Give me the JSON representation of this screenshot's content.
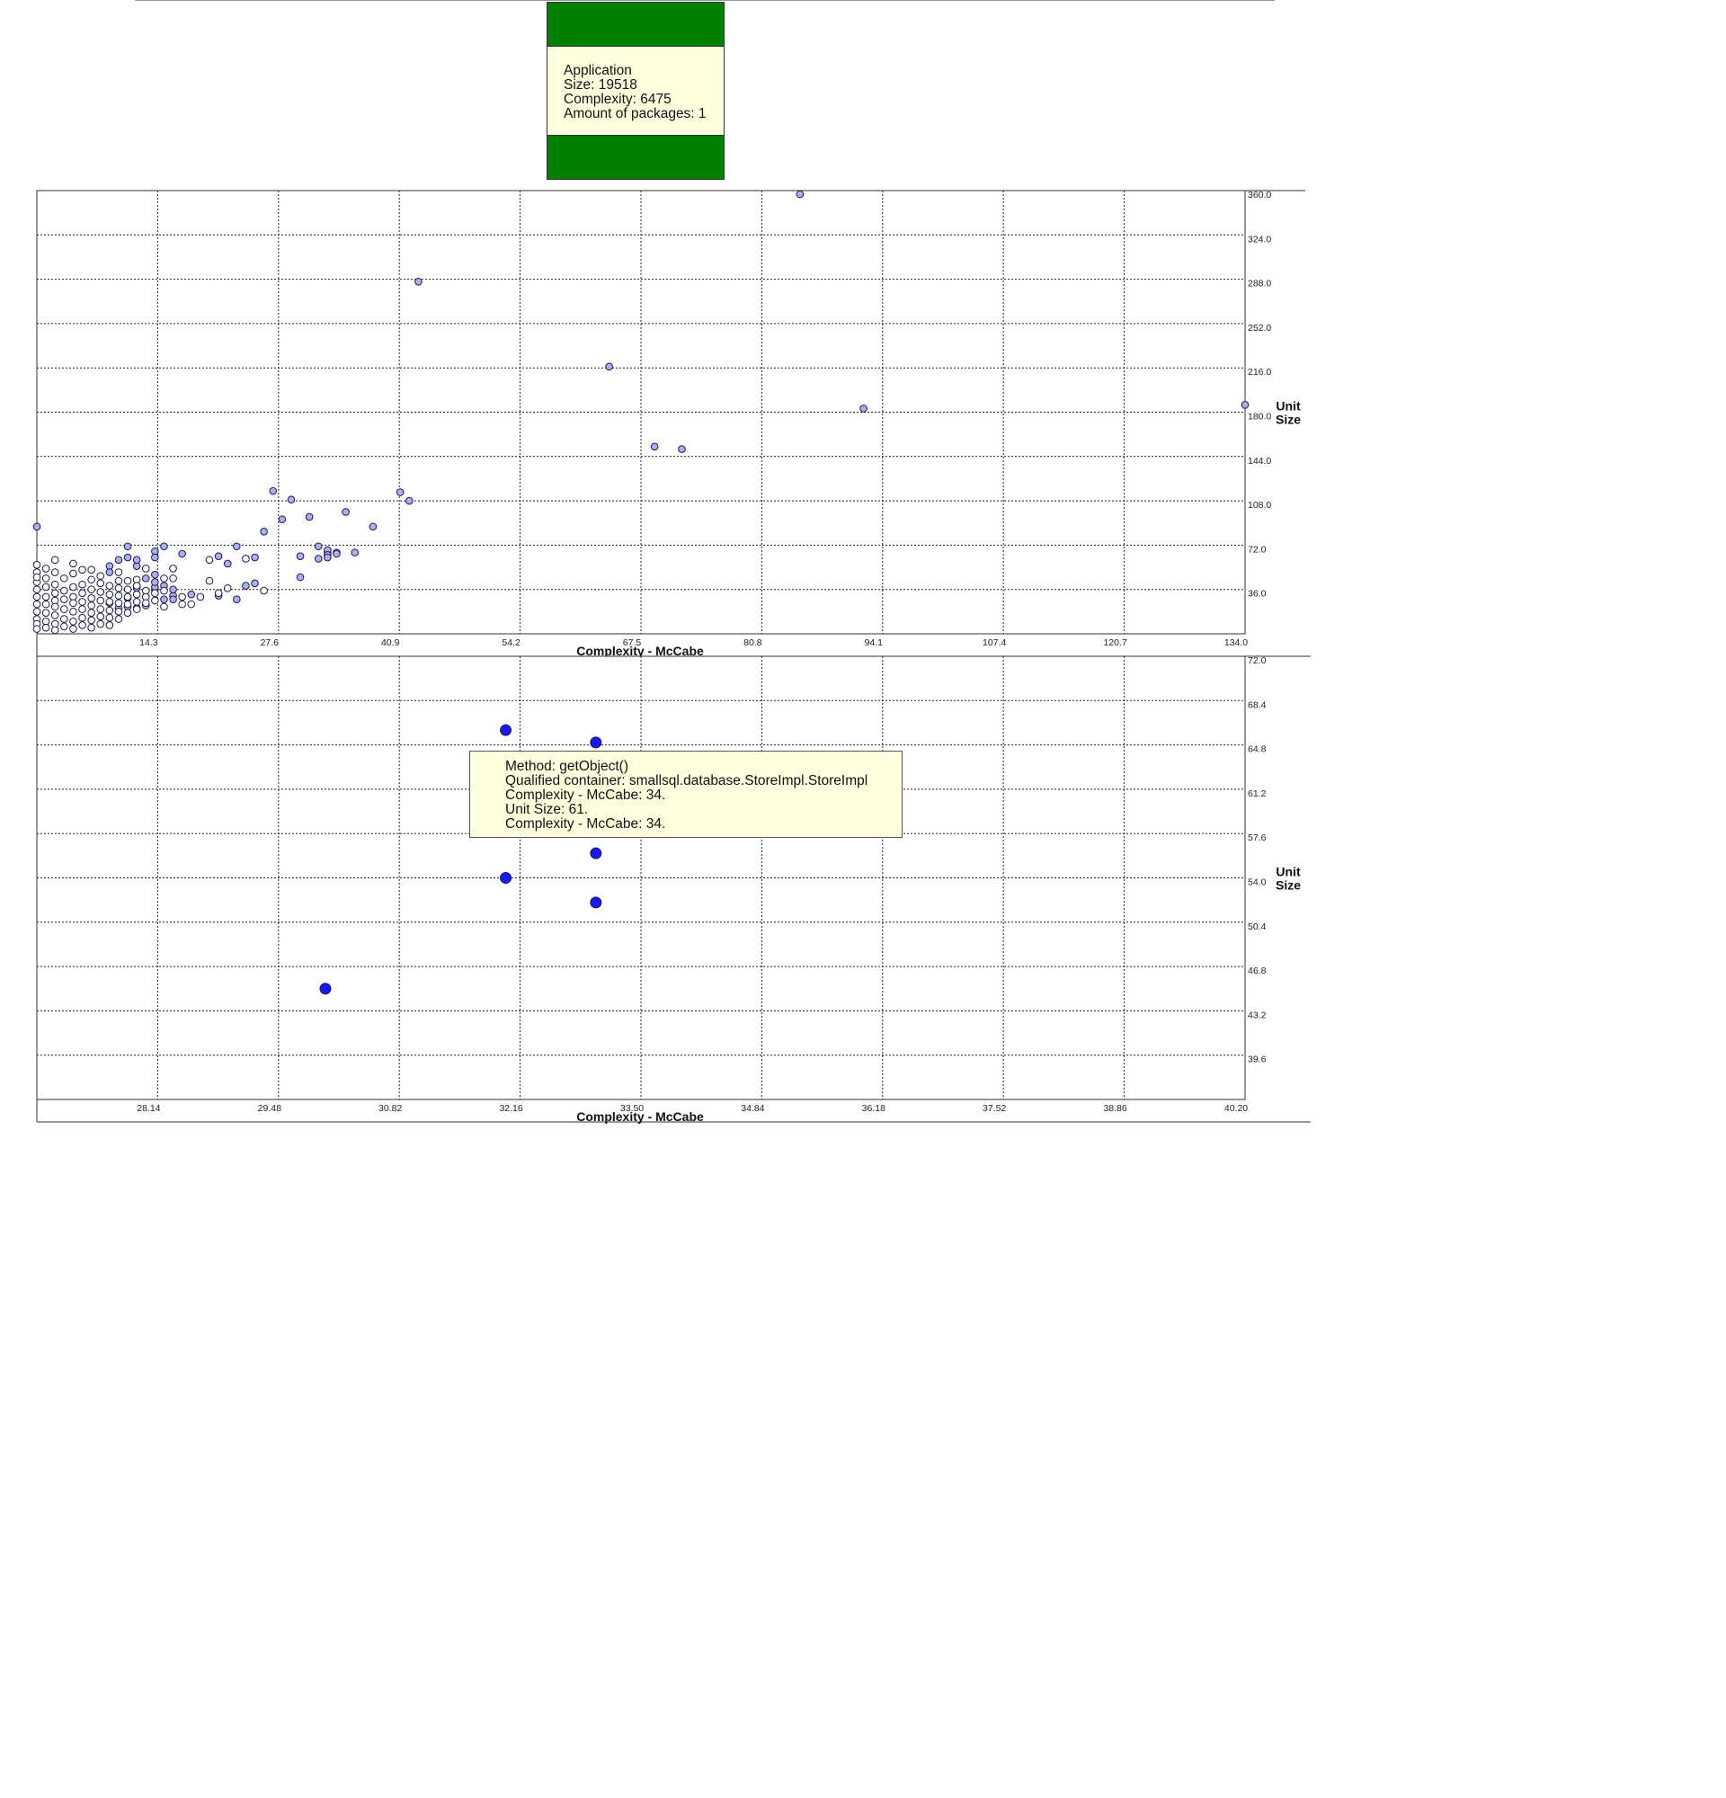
{
  "app_card": {
    "name": "Application",
    "size": "Size: 19518",
    "complexity": "Complexity: 6475",
    "packages": "Amount of packages: 1",
    "band_color": "#008000",
    "body_color": "#ffffe0"
  },
  "tooltip": {
    "lines": [
      "Method: getObject()",
      "Qualified container: smallsql.database.StoreImpl.StoreImpl",
      "Complexity - McCabe: 34.",
      "Unit Size: 61.",
      "Complexity - McCabe: 34."
    ]
  },
  "chart_data": [
    {
      "type": "scatter",
      "xlabel": "Complexity - McCabe",
      "ylabel": "Unit Size",
      "xlim": [
        1,
        134
      ],
      "ylim": [
        0,
        360
      ],
      "x_ticks": [
        "14.3",
        "27.6",
        "40.9",
        "54.2",
        "67.5",
        "80.8",
        "94.1",
        "107.4",
        "120.7",
        "134.0"
      ],
      "y_ticks": [
        "360.0",
        "324.0",
        "288.0",
        "252.0",
        "216.0",
        "180.0",
        "144.0",
        "108.0",
        "72.0",
        "36.0"
      ],
      "grid": true,
      "series": [
        {
          "marker_color": "#aab0ee",
          "points": [
            [
              85,
              357
            ],
            [
              43,
              286
            ],
            [
              64,
              217
            ],
            [
              92,
              183
            ],
            [
              134,
              186
            ],
            [
              69,
              152
            ],
            [
              72,
              150
            ],
            [
              27,
              116
            ],
            [
              29,
              109
            ],
            [
              41,
              115
            ],
            [
              42,
              108
            ],
            [
              1,
              87
            ],
            [
              28,
              93
            ],
            [
              31,
              95
            ],
            [
              35,
              99
            ],
            [
              38,
              87
            ],
            [
              26,
              83
            ],
            [
              23,
              71
            ],
            [
              11,
              71
            ],
            [
              15,
              71
            ],
            [
              14,
              67
            ],
            [
              14,
              62
            ],
            [
              17,
              65
            ],
            [
              21,
              63
            ],
            [
              22,
              57
            ],
            [
              25,
              62
            ],
            [
              30,
              63
            ],
            [
              32,
              71
            ],
            [
              33,
              66
            ],
            [
              33,
              68
            ],
            [
              33,
              64
            ],
            [
              32,
              61
            ],
            [
              34,
              66
            ],
            [
              34,
              65
            ],
            [
              36,
              66
            ],
            [
              33,
              62
            ],
            [
              30,
              46
            ],
            [
              25,
              41
            ],
            [
              24,
              39
            ],
            [
              23,
              28
            ],
            [
              21,
              31
            ],
            [
              18,
              32
            ],
            [
              16,
              31
            ],
            [
              16,
              28
            ],
            [
              15,
              28
            ],
            [
              16,
              36
            ],
            [
              14,
              36
            ],
            [
              13,
              23
            ],
            [
              12,
              21
            ],
            [
              11,
              22
            ],
            [
              10,
              21
            ],
            [
              9,
              25
            ],
            [
              11,
              29
            ],
            [
              12,
              37
            ],
            [
              12,
              55
            ],
            [
              9,
              55
            ],
            [
              9,
              50
            ],
            [
              10,
              60
            ],
            [
              11,
              62
            ],
            [
              12,
              60
            ],
            [
              13,
              45
            ],
            [
              14,
              38
            ],
            [
              14,
              42
            ],
            [
              14,
              48
            ],
            [
              15,
              39
            ]
          ]
        },
        {
          "marker_color": "#ffffff",
          "points": [
            [
              1,
              56
            ],
            [
              1,
              50
            ],
            [
              1,
              42
            ],
            [
              1,
              36
            ],
            [
              1,
              30
            ],
            [
              1,
              24
            ],
            [
              1,
              18
            ],
            [
              1,
              12
            ],
            [
              1,
              8
            ],
            [
              1,
              4
            ],
            [
              2,
              53
            ],
            [
              2,
              45
            ],
            [
              2,
              38
            ],
            [
              2,
              30
            ],
            [
              2,
              24
            ],
            [
              2,
              17
            ],
            [
              2,
              10
            ],
            [
              2,
              5
            ],
            [
              3,
              60
            ],
            [
              3,
              50
            ],
            [
              3,
              40
            ],
            [
              3,
              33
            ],
            [
              3,
              27
            ],
            [
              3,
              22
            ],
            [
              3,
              15
            ],
            [
              3,
              8
            ],
            [
              3,
              3
            ],
            [
              4,
              45
            ],
            [
              4,
              35
            ],
            [
              4,
              28
            ],
            [
              4,
              20
            ],
            [
              4,
              12
            ],
            [
              4,
              6
            ],
            [
              5,
              57
            ],
            [
              5,
              49
            ],
            [
              5,
              38
            ],
            [
              5,
              30
            ],
            [
              5,
              25
            ],
            [
              5,
              18
            ],
            [
              5,
              10
            ],
            [
              5,
              4
            ],
            [
              6,
              40
            ],
            [
              6,
              33
            ],
            [
              6,
              26
            ],
            [
              6,
              20
            ],
            [
              6,
              13
            ],
            [
              6,
              7
            ],
            [
              7,
              52
            ],
            [
              7,
              44
            ],
            [
              7,
              36
            ],
            [
              7,
              29
            ],
            [
              7,
              23
            ],
            [
              7,
              17
            ],
            [
              7,
              11
            ],
            [
              7,
              5
            ],
            [
              8,
              41
            ],
            [
              8,
              34
            ],
            [
              8,
              27
            ],
            [
              8,
              20
            ],
            [
              8,
              14
            ],
            [
              8,
              8
            ],
            [
              9,
              39
            ],
            [
              9,
              32
            ],
            [
              9,
              26
            ],
            [
              9,
              19
            ],
            [
              9,
              13
            ],
            [
              9,
              7
            ],
            [
              10,
              50
            ],
            [
              10,
              37
            ],
            [
              10,
              31
            ],
            [
              10,
              25
            ],
            [
              10,
              18
            ],
            [
              10,
              12
            ],
            [
              11,
              43
            ],
            [
              11,
              36
            ],
            [
              11,
              30
            ],
            [
              11,
              24
            ],
            [
              11,
              17
            ],
            [
              12,
              44
            ],
            [
              12,
              32
            ],
            [
              12,
              26
            ],
            [
              12,
              20
            ],
            [
              13,
              53
            ],
            [
              13,
              35
            ],
            [
              13,
              30
            ],
            [
              13,
              25
            ],
            [
              14,
              33
            ],
            [
              14,
              27
            ],
            [
              15,
              45
            ],
            [
              15,
              35
            ],
            [
              15,
              22
            ],
            [
              16,
              45
            ],
            [
              16,
              53
            ],
            [
              17,
              24
            ],
            [
              17,
              30
            ],
            [
              18,
              24
            ],
            [
              19,
              30
            ],
            [
              20,
              43
            ],
            [
              20,
              60
            ],
            [
              21,
              33
            ],
            [
              22,
              37
            ],
            [
              24,
              61
            ],
            [
              26,
              35
            ],
            [
              1,
              46
            ],
            [
              6,
              52
            ],
            [
              8,
              47
            ],
            [
              10,
              43
            ],
            [
              12,
              39
            ]
          ]
        }
      ]
    },
    {
      "type": "scatter",
      "xlabel": "Complexity - McCabe",
      "ylabel": "Unit Size",
      "xlim": [
        26.8,
        40.2
      ],
      "ylim": [
        36,
        72
      ],
      "x_ticks": [
        "28.14",
        "29.48",
        "30.82",
        "32.16",
        "33.50",
        "34.84",
        "36.18",
        "37.52",
        "38.86",
        "40.20"
      ],
      "y_ticks": [
        "72.0",
        "68.4",
        "64.8",
        "61.2",
        "57.6",
        "54.0",
        "50.4",
        "46.8",
        "43.2",
        "39.6"
      ],
      "grid": true,
      "series": [
        {
          "marker_color": "#1a1aee",
          "points": [
            [
              32,
              66
            ],
            [
              33,
              65
            ],
            [
              32,
              61
            ],
            [
              33,
              61
            ],
            [
              33,
              56
            ],
            [
              32,
              54
            ],
            [
              33,
              52
            ],
            [
              30,
              45
            ]
          ]
        }
      ]
    }
  ]
}
